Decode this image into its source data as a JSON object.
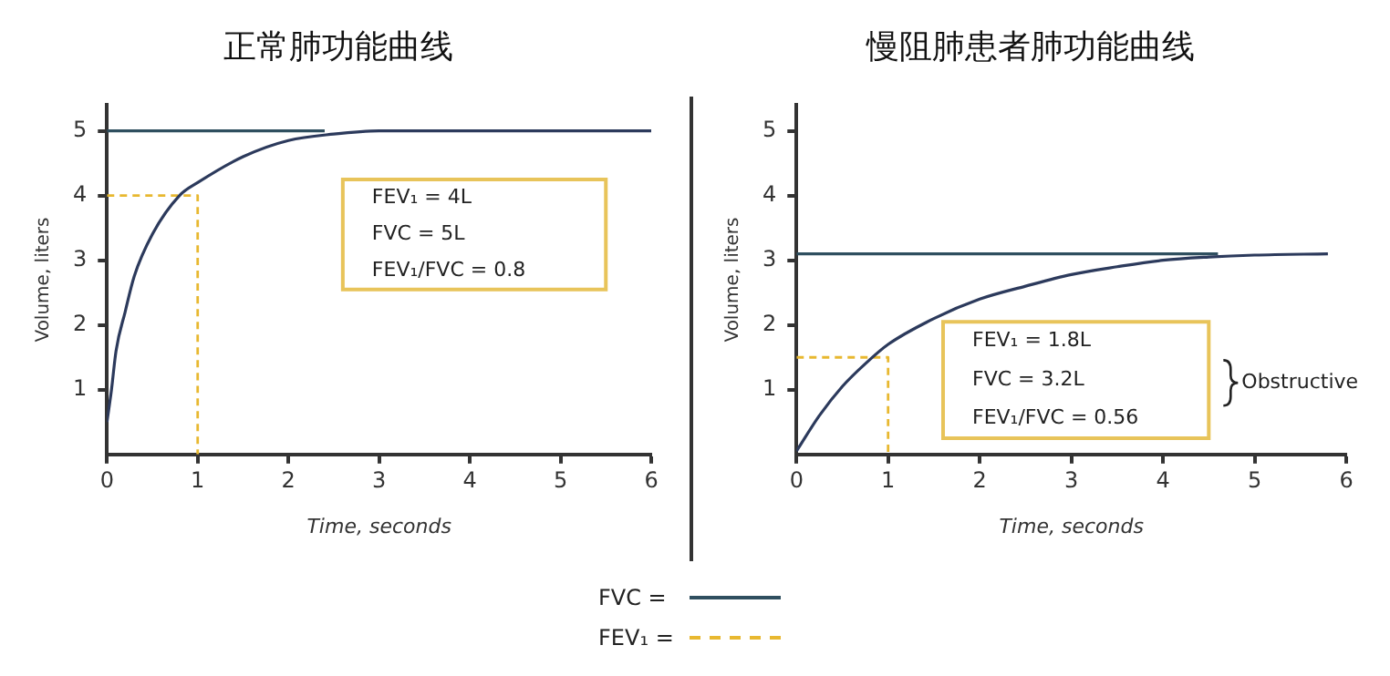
{
  "chart_data": [
    {
      "type": "line",
      "title": "正常肺功能曲线",
      "xlabel": "Time, seconds",
      "ylabel": "Volume, liters",
      "xlim": [
        0,
        6
      ],
      "ylim": [
        0,
        5.4
      ],
      "xticks": [
        0,
        1,
        2,
        3,
        4,
        5,
        6
      ],
      "yticks": [
        1,
        2,
        3,
        4,
        5
      ],
      "grid": false,
      "legend": false,
      "marker": "none",
      "annotations": [
        "FEV₁ = 4L",
        "FVC = 5L",
        "FEV₁/FVC = 0.8"
      ],
      "series": [
        {
          "color": "#2c3a5c",
          "x": [
            0,
            0.05,
            0.1,
            0.2,
            0.3,
            0.5,
            0.8,
            1,
            1.5,
            2,
            2.5,
            3,
            4,
            5,
            6
          ],
          "values": [
            0.5,
            1.0,
            1.6,
            2.2,
            2.75,
            3.4,
            4.0,
            4.2,
            4.6,
            4.85,
            4.95,
            5,
            5,
            5,
            5
          ]
        },
        {
          "color": "#2f4f5f",
          "x": [
            0,
            2.4
          ],
          "values": [
            5,
            5
          ]
        },
        {
          "color": "#e8b830",
          "line_style": "dashed",
          "x": [
            0,
            1,
            1
          ],
          "values": [
            4,
            4,
            0
          ]
        }
      ]
    },
    {
      "type": "line",
      "title": "慢阻肺患者肺功能曲线",
      "xlabel": "Time, seconds",
      "ylabel": "Volume, liters",
      "xlim": [
        0,
        6
      ],
      "ylim": [
        0,
        5.4
      ],
      "xticks": [
        0,
        1,
        2,
        3,
        4,
        5,
        6
      ],
      "yticks": [
        1,
        2,
        3,
        4,
        5
      ],
      "grid": false,
      "legend": "bottom",
      "marker": "none",
      "annotations": [
        "FEV₁ = 1.8L",
        "FVC = 3.2L",
        "FEV₁/FVC = 0.56",
        "Obstructive"
      ],
      "series": [
        {
          "color": "#2c3a5c",
          "x": [
            0,
            0.25,
            0.5,
            0.75,
            1,
            1.5,
            2,
            2.5,
            3,
            3.5,
            4,
            4.5,
            5,
            5.8
          ],
          "values": [
            0.05,
            0.6,
            1.05,
            1.4,
            1.7,
            2.1,
            2.4,
            2.6,
            2.78,
            2.9,
            3.0,
            3.05,
            3.08,
            3.1
          ]
        },
        {
          "name": "FVC =",
          "color": "#2f4f5f",
          "x": [
            0,
            4.6
          ],
          "values": [
            3.1,
            3.1
          ]
        },
        {
          "name": "FEV₁ =",
          "color": "#e8b830",
          "line_style": "dashed",
          "x": [
            0,
            1,
            1
          ],
          "values": [
            1.5,
            1.5,
            0
          ]
        }
      ]
    }
  ]
}
